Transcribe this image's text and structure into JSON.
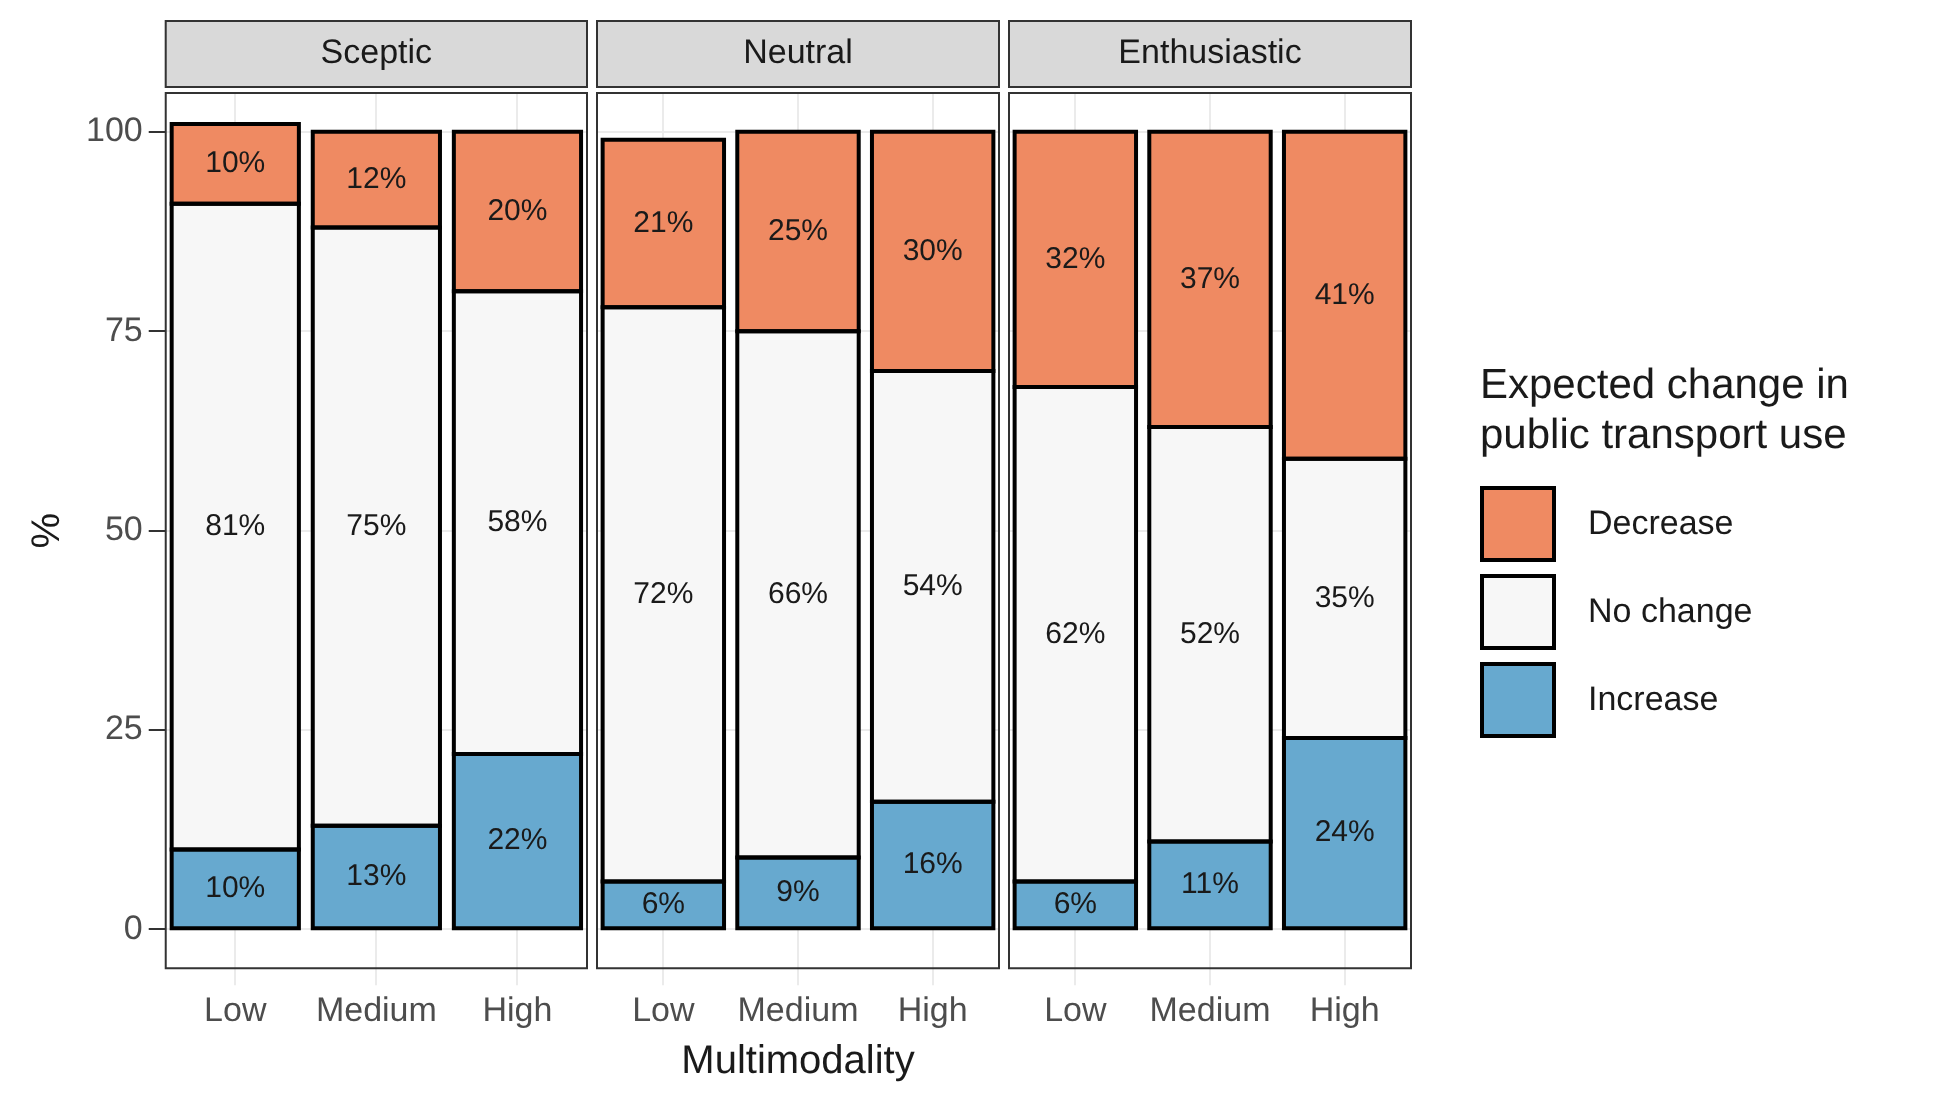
{
  "chart_data": [
    {
      "type": "bar",
      "title": "Sceptic",
      "ylabel": "%",
      "categories": [
        "Low",
        "Medium",
        "High"
      ],
      "stacked": true,
      "grid": true,
      "ylim": [
        -5,
        105
      ],
      "yticks": [
        0,
        25,
        50,
        75,
        100
      ],
      "series": [
        {
          "color": "#67a9cf",
          "values": [
            10,
            13,
            22
          ],
          "value_labels": [
            "10%",
            "13%",
            "22%"
          ]
        },
        {
          "color": "#f7f7f7",
          "values": [
            81,
            75,
            58
          ],
          "value_labels": [
            "81%",
            "75%",
            "58%"
          ]
        },
        {
          "color": "#ef8a62",
          "values": [
            10,
            12,
            20
          ],
          "value_labels": [
            "10%",
            "12%",
            "20%"
          ]
        }
      ]
    },
    {
      "type": "bar",
      "title": "Neutral",
      "xlabel": "Multimodality",
      "categories": [
        "Low",
        "Medium",
        "High"
      ],
      "stacked": true,
      "grid": true,
      "tick_labels": "x",
      "ylim": [
        -5,
        105
      ],
      "yticks": [
        0,
        25,
        50,
        75,
        100
      ],
      "series": [
        {
          "color": "#67a9cf",
          "values": [
            6,
            9,
            16
          ],
          "value_labels": [
            "6%",
            "9%",
            "16%"
          ]
        },
        {
          "color": "#f7f7f7",
          "values": [
            72,
            66,
            54
          ],
          "value_labels": [
            "72%",
            "66%",
            "54%"
          ]
        },
        {
          "color": "#ef8a62",
          "values": [
            21,
            25,
            30
          ],
          "value_labels": [
            "21%",
            "25%",
            "30%"
          ]
        }
      ]
    },
    {
      "type": "bar",
      "title": "Enthusiastic",
      "categories": [
        "Low",
        "Medium",
        "High"
      ],
      "stacked": true,
      "grid": true,
      "tick_labels": "x",
      "ylim": [
        -5,
        105
      ],
      "yticks": [
        0,
        25,
        50,
        75,
        100
      ],
      "legend": "right",
      "legend_title": "Expected change in public transport use",
      "series": [
        {
          "name": "Increase",
          "color": "#67a9cf",
          "values": [
            6,
            11,
            24
          ],
          "value_labels": [
            "6%",
            "11%",
            "24%"
          ]
        },
        {
          "name": "No change",
          "color": "#f7f7f7",
          "values": [
            62,
            52,
            35
          ],
          "value_labels": [
            "62%",
            "52%",
            "35%"
          ]
        },
        {
          "name": "Decrease",
          "color": "#ef8a62",
          "values": [
            32,
            37,
            41
          ],
          "value_labels": [
            "32%",
            "37%",
            "41%"
          ]
        }
      ]
    }
  ]
}
